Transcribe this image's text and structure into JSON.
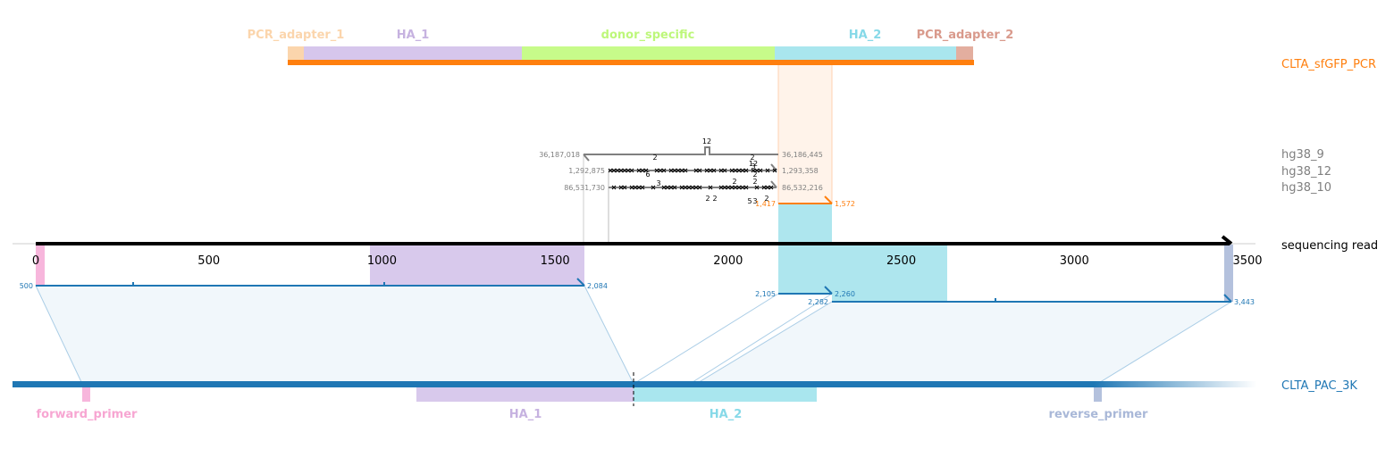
{
  "tracks": {
    "pcr": {
      "name": "CLTA_sfGFP_PCR",
      "color": "#ff7f0e"
    },
    "hg9": {
      "name": "hg38_9",
      "color": "#7f7f7f"
    },
    "hg12": {
      "name": "hg38_12",
      "color": "#7f7f7f"
    },
    "hg10": {
      "name": "hg38_10",
      "color": "#7f7f7f"
    },
    "read": {
      "name": "sequencing read",
      "color": "#000000"
    },
    "ref": {
      "name": "CLTA_PAC_3K",
      "color": "#1f77b4"
    }
  },
  "pcr_features": [
    {
      "name": "PCR_adapter_1",
      "color": "#fbd5ac"
    },
    {
      "name": "HA_1",
      "color": "#c6b2e0"
    },
    {
      "name": "donor_specific",
      "color": "#bdf77a"
    },
    {
      "name": "HA_2",
      "color": "#86d9e8"
    },
    {
      "name": "PCR_adapter_2",
      "color": "#d99a8c"
    }
  ],
  "ref_features": [
    {
      "name": "forward_primer",
      "color": "#f7a6d2"
    },
    {
      "name": "HA_1",
      "color": "#c6b2e0"
    },
    {
      "name": "HA_2",
      "color": "#86d9e8"
    },
    {
      "name": "reverse_primer",
      "color": "#a9b8d8"
    }
  ],
  "axis": {
    "ticks": [
      0,
      500,
      1000,
      1500,
      2000,
      2500,
      3000,
      3500
    ],
    "max": 3500
  },
  "alignments": {
    "ref_a": {
      "left": "500",
      "right": "2,084"
    },
    "ref_b": {
      "left": "2,105",
      "right": "2,260"
    },
    "ref_c": {
      "left": "2,282",
      "right": "3,443"
    },
    "pcr": {
      "left": "1,417",
      "right": "1,572"
    },
    "hg9": {
      "left": "36,187,018",
      "right": "36,186,445",
      "mark": "12"
    },
    "hg12": {
      "left": "1,292,875",
      "right": "1,293,358"
    },
    "hg10": {
      "left": "86,531,730",
      "right": "86,532,216"
    }
  },
  "indel_counts": [
    "2",
    "6",
    "3",
    "2",
    "2",
    "2",
    "2",
    "3",
    "2",
    "5",
    "3",
    "2",
    "12",
    "2"
  ]
}
